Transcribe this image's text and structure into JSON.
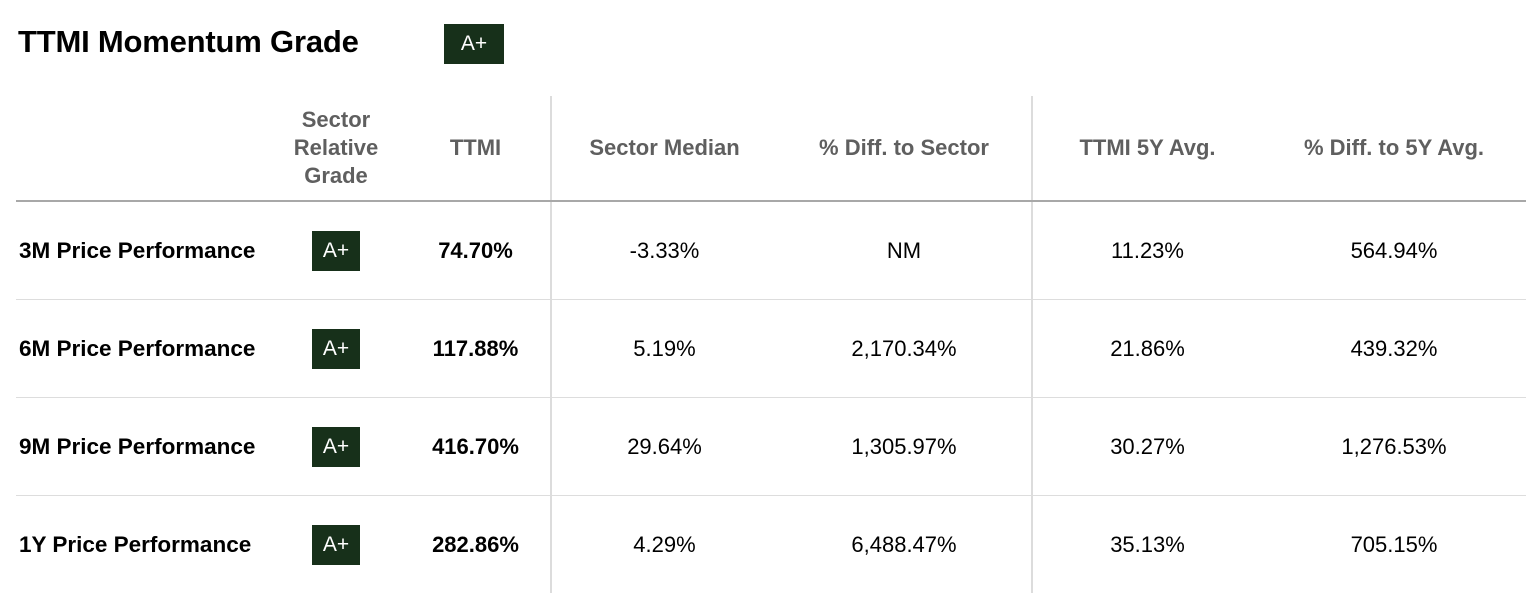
{
  "header": {
    "title": "TTMI Momentum Grade",
    "grade": "A+"
  },
  "table": {
    "columns": [
      "",
      "Sector Relative Grade",
      "TTMI",
      "Sector Median",
      "% Diff. to Sector",
      "TTMI 5Y Avg.",
      "% Diff. to 5Y Avg."
    ],
    "rows": [
      {
        "label": "3M Price Performance",
        "grade": "A+",
        "ttmi": "74.70%",
        "sector_median": "-3.33%",
        "diff_sector": "NM",
        "avg_5y": "11.23%",
        "diff_5y": "564.94%"
      },
      {
        "label": "6M Price Performance",
        "grade": "A+",
        "ttmi": "117.88%",
        "sector_median": "5.19%",
        "diff_sector": "2,170.34%",
        "avg_5y": "21.86%",
        "diff_5y": "439.32%"
      },
      {
        "label": "9M Price Performance",
        "grade": "A+",
        "ttmi": "416.70%",
        "sector_median": "29.64%",
        "diff_sector": "1,305.97%",
        "avg_5y": "30.27%",
        "diff_5y": "1,276.53%"
      },
      {
        "label": "1Y Price Performance",
        "grade": "A+",
        "ttmi": "282.86%",
        "sector_median": "4.29%",
        "diff_sector": "6,488.47%",
        "avg_5y": "35.13%",
        "diff_5y": "705.15%"
      }
    ]
  },
  "colors": {
    "badge_bg": "#17301a",
    "header_text": "#5f5f5f"
  }
}
